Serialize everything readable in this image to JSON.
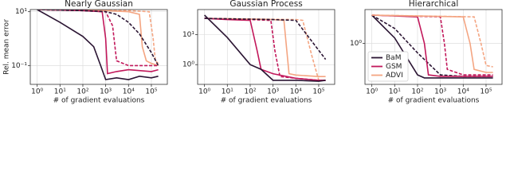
{
  "chart_data": [
    {
      "type": "line",
      "title": "Nearly Gaussian",
      "xlabel": "# of gradient evaluations",
      "ylabel": "Rel. mean error",
      "xscale": "log",
      "yscale": "log",
      "grid": true,
      "xlim": [
        0.5,
        500000
      ],
      "ylim": [
        0.02,
        12
      ],
      "xticks": [
        {
          "value": 1,
          "label": "10⁰"
        },
        {
          "value": 10,
          "label": "10¹"
        },
        {
          "value": 100,
          "label": "10²"
        },
        {
          "value": 1000,
          "label": "10³"
        },
        {
          "value": 10000,
          "label": "10⁴"
        },
        {
          "value": 100000,
          "label": "10⁵"
        }
      ],
      "yticks": [
        {
          "value": 0.1,
          "label": "10⁻¹"
        },
        {
          "value": 10,
          "label": "10¹"
        }
      ],
      "series": [
        {
          "name": "ADVI",
          "color": "#f4a582",
          "x": [
            1,
            1000,
            10000,
            30000,
            40000,
            60000,
            100000,
            200000
          ],
          "values": [
            12,
            11,
            10,
            8,
            0.5,
            0.15,
            0.12,
            0.1
          ]
        },
        {
          "color": "#f4a582",
          "dash": true,
          "x": [
            1,
            10000,
            80000,
            120000,
            150000,
            200000
          ],
          "values": [
            12,
            11,
            10,
            1,
            0.15,
            0.12
          ]
        },
        {
          "name": "GSM",
          "color": "#c2185b",
          "x": [
            1,
            100,
            700,
            1000,
            1200,
            3000,
            10000,
            100000,
            200000
          ],
          "values": [
            12,
            11,
            10,
            1,
            0.05,
            0.06,
            0.07,
            0.06,
            0.07
          ]
        },
        {
          "color": "#c2185b",
          "dash": true,
          "x": [
            1,
            100,
            1000,
            2000,
            3000,
            10000,
            100000,
            200000
          ],
          "values": [
            12,
            11,
            10,
            3,
            0.15,
            0.1,
            0.1,
            0.1
          ]
        },
        {
          "name": "BaM",
          "color": "#2b1533",
          "x": [
            1,
            10,
            100,
            300,
            600,
            1000,
            3000,
            10000,
            30000,
            100000,
            200000
          ],
          "values": [
            12,
            4,
            1.2,
            0.5,
            0.1,
            0.03,
            0.035,
            0.03,
            0.04,
            0.035,
            0.04
          ]
        },
        {
          "color": "#2b1533",
          "dash": true,
          "x": [
            1,
            100,
            1000,
            3000,
            10000,
            30000,
            100000,
            200000
          ],
          "values": [
            12,
            11,
            10,
            8,
            4,
            1.5,
            0.3,
            0.1
          ]
        }
      ]
    },
    {
      "type": "line",
      "title": "Gaussian Process",
      "xlabel": "# of gradient evaluations",
      "xscale": "log",
      "yscale": "log",
      "grid": true,
      "xlim": [
        0.5,
        500000
      ],
      "ylim": [
        0.22,
        69
      ],
      "xticks": [
        {
          "value": 1,
          "label": "10⁰"
        },
        {
          "value": 10,
          "label": "10¹"
        },
        {
          "value": 100,
          "label": "10²"
        },
        {
          "value": 1000,
          "label": "10³"
        },
        {
          "value": 10000,
          "label": "10⁴"
        },
        {
          "value": 100000,
          "label": "10⁵"
        }
      ],
      "yticks": [
        {
          "value": 1,
          "label": "10⁰"
        },
        {
          "value": 10,
          "label": "10¹"
        }
      ],
      "series": [
        {
          "name": "ADVI",
          "color": "#f4a582",
          "x": [
            1,
            1000,
            3000,
            4000,
            5000,
            10000,
            100000,
            200000
          ],
          "values": [
            35,
            32,
            30,
            3,
            0.5,
            0.45,
            0.4,
            0.4
          ]
        },
        {
          "color": "#f4a582",
          "dash": true,
          "x": [
            1,
            10000,
            20000,
            50000,
            100000,
            200000
          ],
          "values": [
            35,
            32,
            30,
            2,
            0.3,
            0.3
          ]
        },
        {
          "name": "GSM",
          "color": "#c2185b",
          "x": [
            1,
            10,
            100,
            200,
            300,
            1000,
            10000,
            100000,
            200000
          ],
          "values": [
            35,
            32,
            30,
            3,
            0.7,
            0.5,
            0.35,
            0.3,
            0.3
          ]
        },
        {
          "color": "#c2185b",
          "dash": true,
          "x": [
            1,
            100,
            800,
            1200,
            2000,
            10000,
            100000,
            200000
          ],
          "values": [
            35,
            32,
            30,
            3,
            0.4,
            0.35,
            0.3,
            0.3
          ]
        },
        {
          "name": "BaM",
          "color": "#2b1533",
          "x": [
            1,
            10,
            100,
            300,
            1000,
            10000,
            100000,
            200000
          ],
          "values": [
            45,
            8,
            1,
            0.7,
            0.3,
            0.3,
            0.28,
            0.3
          ]
        },
        {
          "color": "#2b1533",
          "dash": true,
          "x": [
            1,
            1000,
            10000,
            30000,
            100000,
            200000
          ],
          "values": [
            35,
            32,
            30,
            10,
            3,
            1.5
          ]
        }
      ]
    },
    {
      "type": "line",
      "title": "Hierarchical",
      "xlabel": "# of gradient evaluations",
      "xscale": "log",
      "yscale": "log",
      "grid": true,
      "legend": "lower left",
      "xlim": [
        0.5,
        500000
      ],
      "ylim": [
        0.05,
        12
      ],
      "xticks": [
        {
          "value": 1,
          "label": "10⁰"
        },
        {
          "value": 10,
          "label": "10¹"
        },
        {
          "value": 100,
          "label": "10²"
        },
        {
          "value": 1000,
          "label": "10³"
        },
        {
          "value": 10000,
          "label": "10⁴"
        },
        {
          "value": 100000,
          "label": "10⁵"
        }
      ],
      "yticks": [
        {
          "value": 1,
          "label": "10⁰"
        }
      ],
      "series": [
        {
          "name": "BaM",
          "color": "#2b1533",
          "x": [
            1,
            10,
            100,
            200,
            1000,
            10000,
            100000,
            200000
          ],
          "values": [
            8,
            1.5,
            0.1,
            0.08,
            0.08,
            0.08,
            0.08,
            0.08
          ]
        },
        {
          "color": "#2b1533",
          "dash": true,
          "x": [
            1,
            10,
            100,
            1000,
            10000,
            100000,
            200000
          ],
          "values": [
            8,
            3,
            0.5,
            0.1,
            0.09,
            0.09,
            0.09
          ]
        },
        {
          "name": "GSM",
          "color": "#c2185b",
          "x": [
            1,
            100,
            200,
            300,
            1000,
            10000,
            100000,
            200000
          ],
          "values": [
            8,
            7,
            1,
            0.1,
            0.09,
            0.09,
            0.09,
            0.09
          ]
        },
        {
          "color": "#c2185b",
          "dash": true,
          "x": [
            1,
            1000,
            1500,
            2000,
            10000,
            100000,
            200000
          ],
          "values": [
            8,
            7,
            1,
            0.15,
            0.1,
            0.1,
            0.1
          ]
        },
        {
          "name": "ADVI",
          "color": "#f4a582",
          "x": [
            1,
            10000,
            20000,
            30000,
            100000,
            200000
          ],
          "values": [
            8,
            7,
            1,
            0.15,
            0.12,
            0.12
          ]
        },
        {
          "color": "#f4a582",
          "dash": true,
          "x": [
            1,
            30000,
            60000,
            100000,
            200000
          ],
          "values": [
            8,
            7,
            1,
            0.2,
            0.18
          ]
        }
      ]
    }
  ]
}
